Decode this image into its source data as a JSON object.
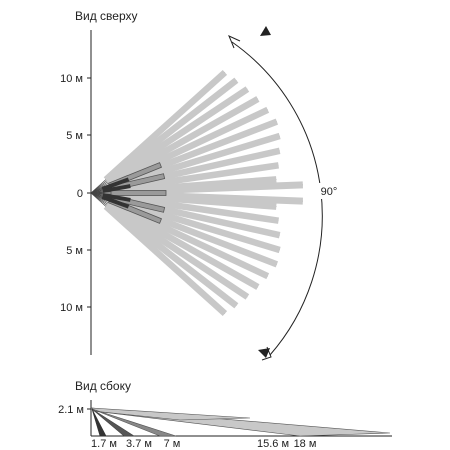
{
  "top_view": {
    "title": "Вид сверху",
    "y_ticks": [
      "10 м",
      "5 м",
      "0",
      "5 м",
      "10 м"
    ],
    "angle_label": "90°",
    "fan_angle_deg": 90,
    "long_beam_range_m": 18,
    "mid_beam_range_m": 7,
    "short_beam_range_m": 3.7
  },
  "side_view": {
    "title": "Вид сбоку",
    "height_label": "2.1 м",
    "distance_labels": [
      "1.7 м",
      "3.7 м",
      "7 м",
      "15.6 м",
      "18 м"
    ]
  },
  "colors": {
    "beam_gray": "#c8c8c8",
    "beam_dark": "#555555",
    "line": "#222222"
  }
}
